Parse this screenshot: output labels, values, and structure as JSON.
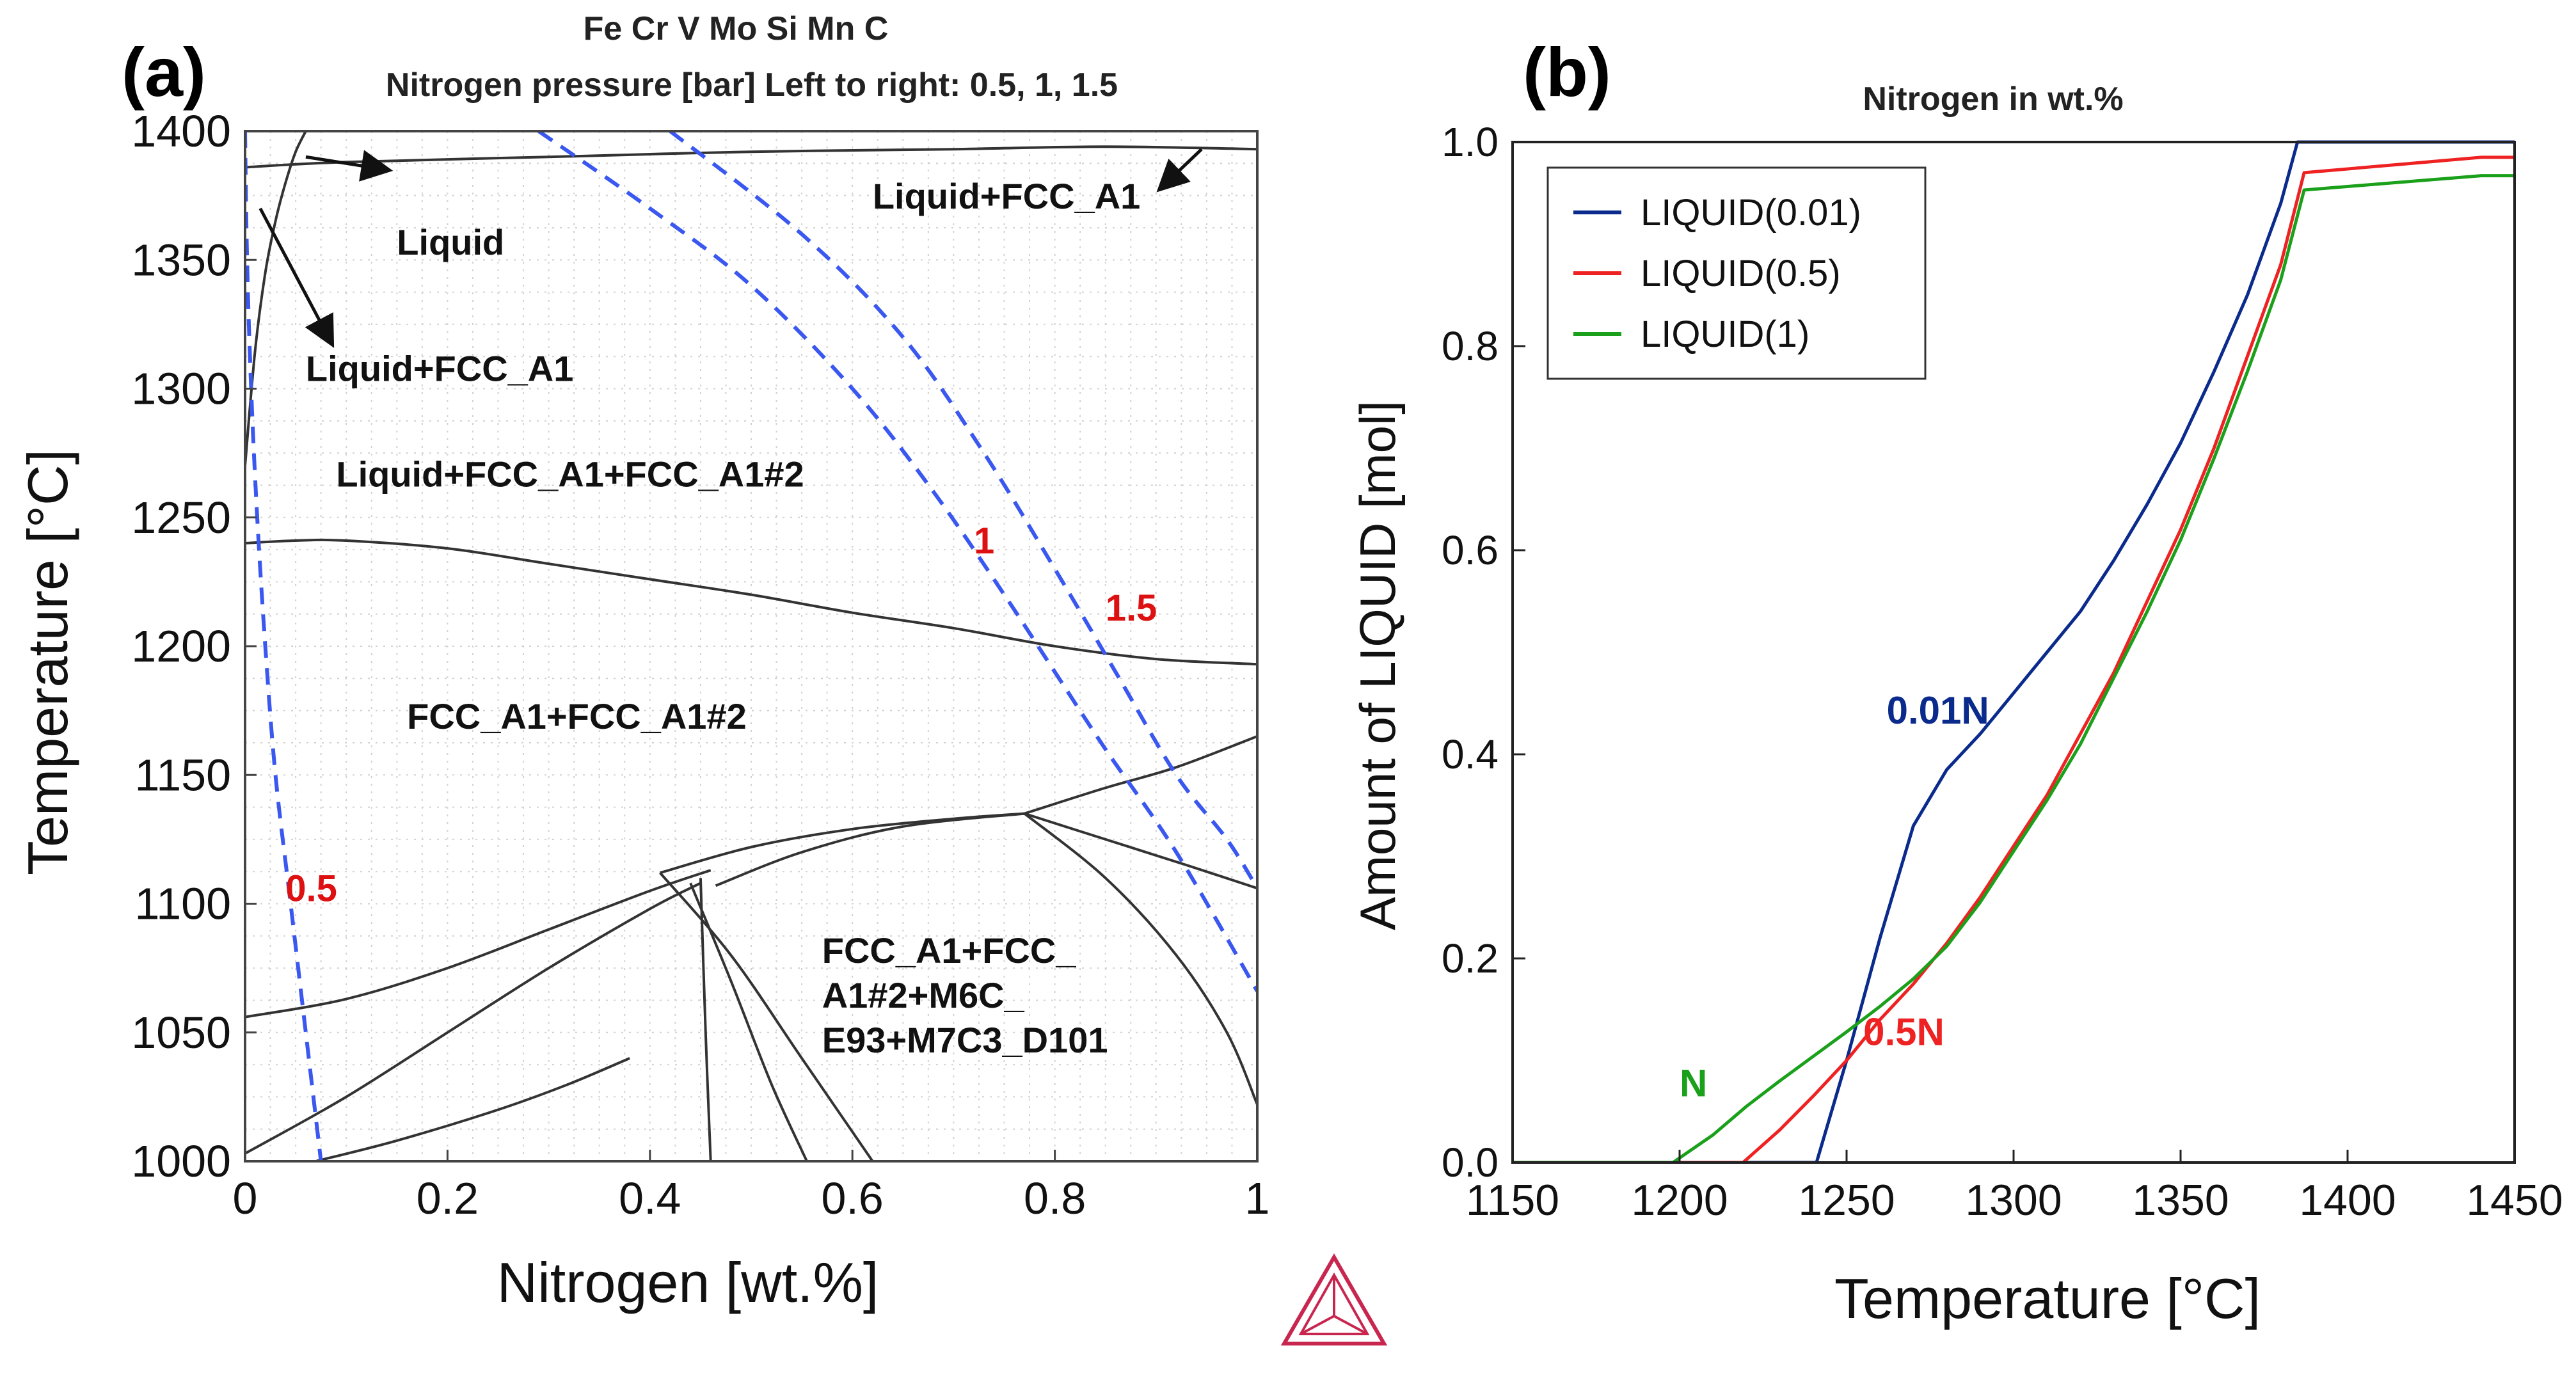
{
  "chart_data": [
    {
      "type": "line",
      "panel_label": "(a)",
      "title": "Fe Cr V Mo Si Mn C",
      "subtitle": "Nitrogen pressure [bar] Left to right: 0.5, 1, 1.5",
      "xlabel": "Nitrogen [wt.%]",
      "ylabel": "Temperature [°C]",
      "xlim": [
        0,
        1
      ],
      "ylim": [
        1000,
        1400
      ],
      "grid": true,
      "x_ticks": [
        "0",
        "0.2",
        "0.4",
        "0.6",
        "0.8",
        "1"
      ],
      "y_ticks": [
        "1000",
        "1050",
        "1100",
        "1150",
        "1200",
        "1250",
        "1300",
        "1350",
        "1400"
      ],
      "phase_boundaries": [
        {
          "x": [
            0,
            0.1,
            0.3,
            0.5,
            0.7,
            0.85,
            1.0
          ],
          "y": [
            1386,
            1388,
            1390,
            1392,
            1393,
            1394,
            1393
          ]
        },
        {
          "x": [
            0,
            0.01,
            0.02,
            0.03,
            0.04,
            0.05,
            0.06
          ],
          "y": [
            1270,
            1315,
            1345,
            1365,
            1380,
            1392,
            1400
          ]
        },
        {
          "x": [
            0,
            0.05,
            0.1,
            0.2,
            0.3,
            0.4,
            0.5,
            0.6,
            0.7,
            0.8,
            0.9,
            1.0
          ],
          "y": [
            1240,
            1241,
            1241,
            1238,
            1232,
            1226,
            1220,
            1213,
            1207,
            1200,
            1195,
            1193
          ]
        },
        {
          "x": [
            0,
            0.1,
            0.2,
            0.3,
            0.4,
            0.46
          ],
          "y": [
            1056,
            1063,
            1075,
            1090,
            1105,
            1113
          ]
        },
        {
          "x": [
            0,
            0.1,
            0.2,
            0.3,
            0.4,
            0.45
          ],
          "y": [
            1003,
            1025,
            1050,
            1075,
            1098,
            1108
          ]
        },
        {
          "x": [
            0.41,
            0.5,
            0.6,
            0.7,
            0.77
          ],
          "y": [
            1112,
            1122,
            1129,
            1133,
            1135
          ]
        },
        {
          "x": [
            0.465,
            0.55,
            0.65,
            0.77
          ],
          "y": [
            1107,
            1120,
            1130,
            1135
          ]
        },
        {
          "x": [
            0.77,
            0.85,
            0.92,
            1.0
          ],
          "y": [
            1135,
            1145,
            1153,
            1165
          ]
        },
        {
          "x": [
            0.77,
            0.85,
            0.93,
            1.0
          ],
          "y": [
            1135,
            1125,
            1115,
            1106
          ]
        },
        {
          "x": [
            0.77,
            0.85,
            0.92,
            0.97,
            1.0
          ],
          "y": [
            1135,
            1110,
            1080,
            1050,
            1022
          ]
        },
        {
          "x": [
            0.41,
            0.48,
            0.55,
            0.62
          ],
          "y": [
            1112,
            1080,
            1040,
            1000
          ]
        },
        {
          "x": [
            0.44,
            0.48,
            0.52,
            0.555
          ],
          "y": [
            1108,
            1070,
            1030,
            1000
          ]
        },
        {
          "x": [
            0.45,
            0.455,
            0.46
          ],
          "y": [
            1110,
            1050,
            1000
          ]
        },
        {
          "x": [
            0.07,
            0.15,
            0.25,
            0.32,
            0.38
          ],
          "y": [
            1000,
            1008,
            1020,
            1030,
            1040
          ]
        }
      ],
      "series": [
        {
          "name": "0.5",
          "x": [
            0.0,
            0.002,
            0.006,
            0.012,
            0.02,
            0.03,
            0.045,
            0.06,
            0.075
          ],
          "y": [
            1400,
            1350,
            1300,
            1250,
            1200,
            1150,
            1100,
            1050,
            1000
          ]
        },
        {
          "name": "1",
          "x": [
            0.29,
            0.4,
            0.5,
            0.6,
            0.68,
            0.75,
            0.8,
            0.85,
            0.92,
            1.0
          ],
          "y": [
            1400,
            1370,
            1340,
            1300,
            1260,
            1220,
            1190,
            1160,
            1120,
            1066
          ]
        },
        {
          "name": "1.5",
          "x": [
            0.42,
            0.55,
            0.65,
            0.73,
            0.8,
            0.86,
            0.92,
            0.97,
            1.0
          ],
          "y": [
            1400,
            1360,
            1320,
            1275,
            1230,
            1190,
            1150,
            1125,
            1106
          ]
        }
      ],
      "annotations": [
        {
          "text": "Liquid",
          "x": 0.15,
          "y": 1352,
          "arrow_to": [
            0.14,
            1385
          ],
          "arrow_from": [
            0.06,
            1390
          ]
        },
        {
          "text": "Liquid+FCC_A1",
          "x": 0.06,
          "y": 1303,
          "arrow_from": [
            0.015,
            1370
          ],
          "arrow_to": [
            0.085,
            1318
          ]
        },
        {
          "text": "Liquid+FCC_A1",
          "x": 0.62,
          "y": 1370,
          "arrow_from": [
            0.945,
            1393
          ],
          "arrow_to": [
            0.905,
            1378
          ]
        },
        {
          "text": "Liquid+FCC_A1+FCC_A1#2",
          "x": 0.09,
          "y": 1262
        },
        {
          "text": "FCC_A1+FCC_A1#2",
          "x": 0.16,
          "y": 1168
        },
        {
          "text_lines": [
            "FCC_A1+FCC_",
            "A1#2+M6C_",
            "E93+M7C3_D101"
          ],
          "x": 0.57,
          "y": 1077
        },
        {
          "text": "0.5",
          "x": 0.04,
          "y": 1101,
          "color": "#dd1111"
        },
        {
          "text": "1",
          "x": 0.72,
          "y": 1236,
          "color": "#dd1111"
        },
        {
          "text": "1.5",
          "x": 0.85,
          "y": 1210,
          "color": "#dd1111"
        }
      ],
      "colors": {
        "boundary": "#333333",
        "pressure_series": "#3a57f0",
        "label_red": "#dd1111"
      }
    },
    {
      "type": "line",
      "panel_label": "(b)",
      "title": "Nitrogen in wt.%",
      "xlabel": "Temperature [°C]",
      "ylabel": "Amount of LIQUID [mol]",
      "xlim": [
        1150,
        1450
      ],
      "ylim": [
        0,
        1
      ],
      "grid": false,
      "legend_position": "top-left",
      "x_ticks": [
        "1150",
        "1200",
        "1250",
        "1300",
        "1350",
        "1400",
        "1450"
      ],
      "y_ticks": [
        "0.0",
        "0.2",
        "0.4",
        "0.6",
        "0.8",
        "1.0"
      ],
      "series": [
        {
          "name": "LIQUID(0.01)",
          "color": "#0a2a8c",
          "x": [
            1150,
            1241,
            1250,
            1260,
            1270,
            1280,
            1290,
            1300,
            1310,
            1320,
            1330,
            1340,
            1350,
            1360,
            1370,
            1380,
            1385,
            1450
          ],
          "y": [
            0,
            0,
            0.1,
            0.22,
            0.33,
            0.385,
            0.42,
            0.46,
            0.5,
            0.54,
            0.59,
            0.645,
            0.705,
            0.775,
            0.85,
            0.94,
            1.0,
            1.0
          ]
        },
        {
          "name": "LIQUID(0.5)",
          "color": "#ee2222",
          "x": [
            1150,
            1219,
            1230,
            1240,
            1250,
            1260,
            1270,
            1280,
            1290,
            1300,
            1310,
            1320,
            1330,
            1340,
            1350,
            1360,
            1370,
            1380,
            1387,
            1440,
            1450
          ],
          "y": [
            0,
            0,
            0.032,
            0.065,
            0.1,
            0.14,
            0.175,
            0.215,
            0.26,
            0.31,
            0.36,
            0.42,
            0.48,
            0.55,
            0.62,
            0.7,
            0.79,
            0.88,
            0.97,
            0.985,
            0.985
          ]
        },
        {
          "name": "LIQUID(1)",
          "color": "#1aa01a",
          "x": [
            1150,
            1198,
            1210,
            1220,
            1230,
            1240,
            1250,
            1260,
            1270,
            1280,
            1290,
            1300,
            1310,
            1320,
            1330,
            1340,
            1350,
            1360,
            1370,
            1380,
            1387,
            1440,
            1450
          ],
          "y": [
            0,
            0,
            0.027,
            0.055,
            0.08,
            0.104,
            0.128,
            0.153,
            0.18,
            0.212,
            0.255,
            0.305,
            0.355,
            0.41,
            0.475,
            0.54,
            0.61,
            0.69,
            0.775,
            0.865,
            0.953,
            0.967,
            0.967
          ]
        }
      ],
      "annotations": [
        {
          "text": "0.01N",
          "x": 1262,
          "y": 0.43,
          "color": "#0a2a8c"
        },
        {
          "text": "0.5N",
          "x": 1255,
          "y": 0.115,
          "color": "#ee2222"
        },
        {
          "text": "N",
          "x": 1200,
          "y": 0.065,
          "color": "#1aa01a"
        }
      ]
    }
  ]
}
